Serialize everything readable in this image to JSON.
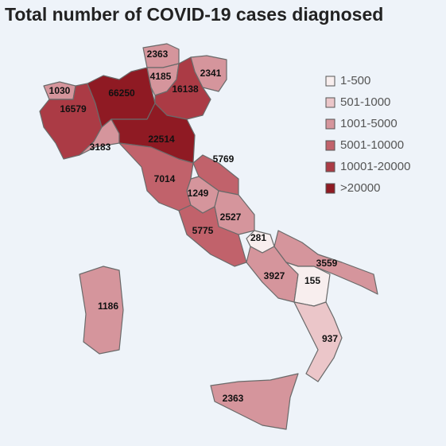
{
  "title": "Total number of COVID-19 cases diagnosed",
  "legend": [
    {
      "label": "1-500",
      "color": "#f8eeee"
    },
    {
      "label": "501-1000",
      "color": "#ebc6c9"
    },
    {
      "label": "1001-5000",
      "color": "#d5959c"
    },
    {
      "label": "5001-10000",
      "color": "#c1626b"
    },
    {
      "label": "10001-20000",
      "color": "#ab3b45"
    },
    {
      "label": ">20000",
      "color": "#8f1a23"
    }
  ],
  "regions": [
    {
      "value": 1030,
      "class": 2
    },
    {
      "value": 16579,
      "class": 4
    },
    {
      "value": 66250,
      "class": 5
    },
    {
      "value": 2363,
      "class": 2
    },
    {
      "value": 4185,
      "class": 2
    },
    {
      "value": 16138,
      "class": 4
    },
    {
      "value": 2341,
      "class": 2
    },
    {
      "value": 3183,
      "class": 2
    },
    {
      "value": 22514,
      "class": 5
    },
    {
      "value": 7014,
      "class": 3
    },
    {
      "value": 5769,
      "class": 3
    },
    {
      "value": 1249,
      "class": 2
    },
    {
      "value": 2527,
      "class": 2
    },
    {
      "value": 5775,
      "class": 3
    },
    {
      "value": 281,
      "class": 0
    },
    {
      "value": 3927,
      "class": 2
    },
    {
      "value": 3559,
      "class": 2
    },
    {
      "value": 155,
      "class": 0
    },
    {
      "value": 937,
      "class": 1
    },
    {
      "value": 2363,
      "class": 2
    },
    {
      "value": 1186,
      "class": 2
    }
  ]
}
